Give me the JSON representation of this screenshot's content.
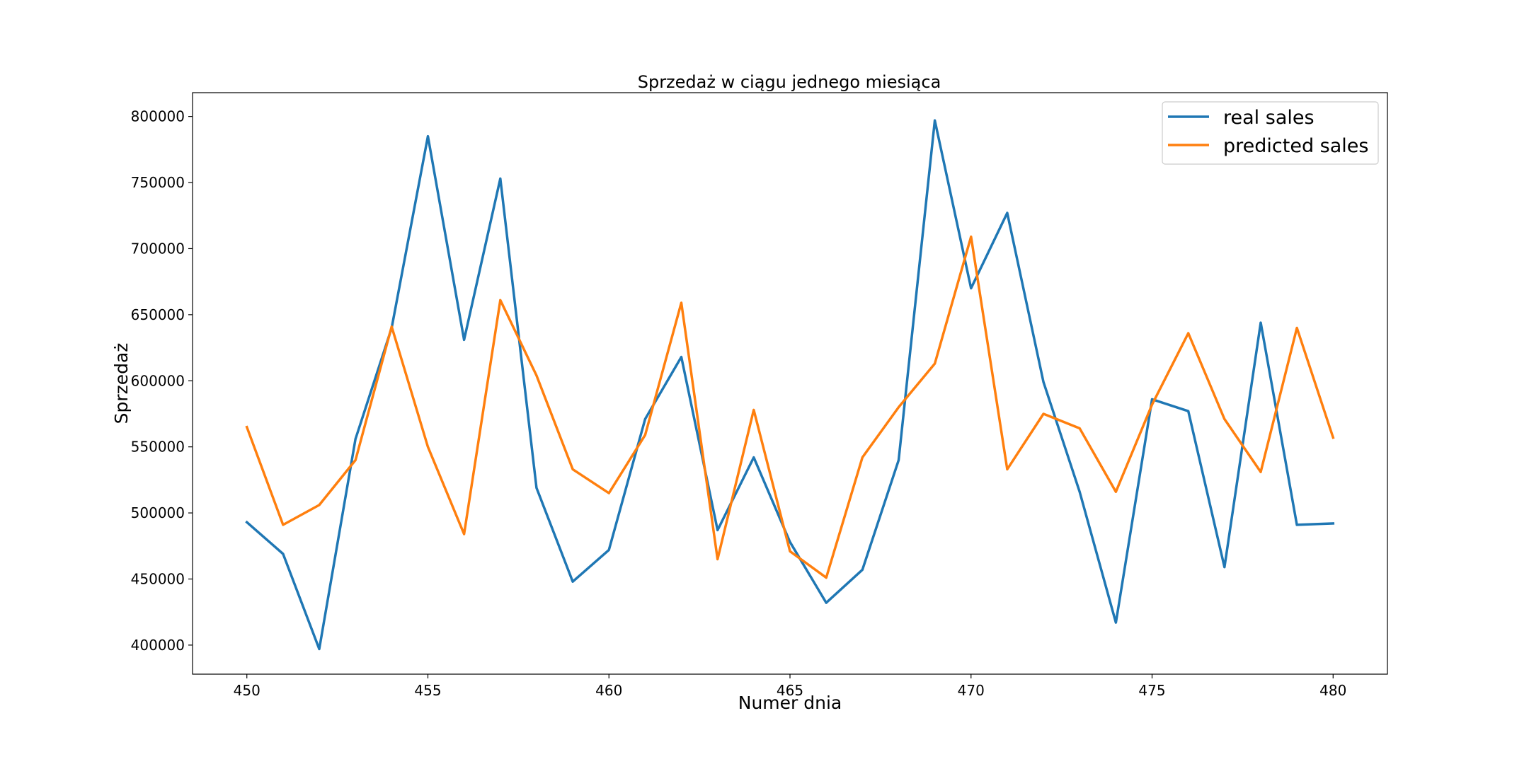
{
  "chart_data": {
    "type": "line",
    "title": "Sprzedaż w ciągu jednego miesiąca",
    "xlabel": "Numer dnia",
    "ylabel": "Sprzedaż",
    "x": [
      450,
      451,
      452,
      453,
      454,
      455,
      456,
      457,
      458,
      459,
      460,
      461,
      462,
      463,
      464,
      465,
      466,
      467,
      468,
      469,
      470,
      471,
      472,
      473,
      474,
      475,
      476,
      477,
      478,
      479,
      480
    ],
    "xlim": [
      448.5,
      481.5
    ],
    "ylim": [
      378000,
      818000
    ],
    "xticks": [
      450,
      455,
      460,
      465,
      470,
      475,
      480
    ],
    "yticks": [
      400000,
      450000,
      500000,
      550000,
      600000,
      650000,
      700000,
      750000,
      800000
    ],
    "grid": false,
    "legend_position": "top-right",
    "series": [
      {
        "name": "real sales",
        "color": "#1f77b4",
        "values": [
          493000,
          469000,
          397000,
          556000,
          640000,
          785000,
          631000,
          753000,
          519000,
          448000,
          472000,
          571000,
          618000,
          487000,
          542000,
          478000,
          432000,
          457000,
          540000,
          797000,
          670000,
          727000,
          599000,
          516000,
          417000,
          586000,
          577000,
          459000,
          644000,
          491000,
          492000
        ]
      },
      {
        "name": "predicted sales",
        "color": "#ff7f0e",
        "values": [
          565000,
          491000,
          506000,
          540000,
          641000,
          550000,
          484000,
          661000,
          604000,
          533000,
          515000,
          559000,
          659000,
          465000,
          578000,
          471000,
          451000,
          542000,
          580000,
          613000,
          709000,
          533000,
          575000,
          564000,
          516000,
          582000,
          636000,
          571000,
          531000,
          640000,
          557000
        ]
      }
    ]
  }
}
